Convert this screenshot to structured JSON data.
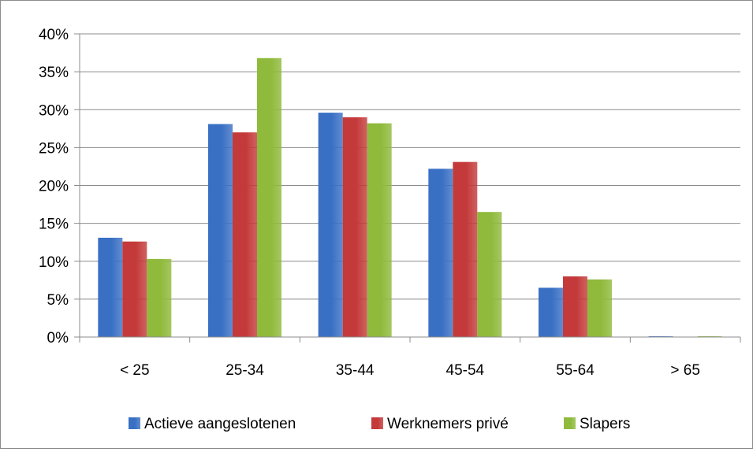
{
  "chart_data": {
    "type": "bar",
    "categories": [
      "< 25",
      "25-34",
      "35-44",
      "45-54",
      "55-64",
      "> 65"
    ],
    "series": [
      {
        "name": "Actieve aangeslotenen",
        "values": [
          13.1,
          28.1,
          29.6,
          22.2,
          6.5,
          0.1
        ],
        "color": "#3a70c4"
      },
      {
        "name": "Werknemers privé",
        "values": [
          12.6,
          27.0,
          29.0,
          23.1,
          8.0,
          0.0
        ],
        "color": "#c43a3a"
      },
      {
        "name": "Slapers",
        "values": [
          10.3,
          36.8,
          28.2,
          16.5,
          7.6,
          0.1
        ],
        "color": "#8fba3b"
      }
    ],
    "y_ticks": [
      "0%",
      "5%",
      "10%",
      "15%",
      "20%",
      "25%",
      "30%",
      "35%",
      "40%"
    ],
    "ylim": [
      0,
      40
    ],
    "y_unit": "%",
    "grid": true,
    "legend_position": "bottom"
  }
}
